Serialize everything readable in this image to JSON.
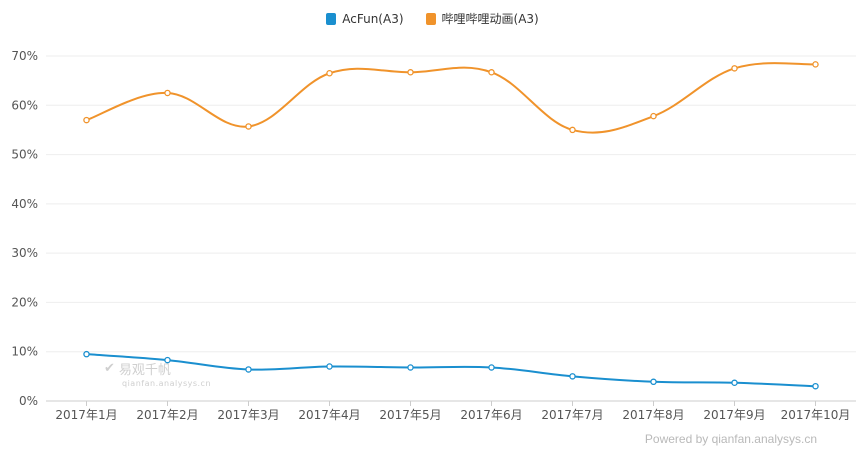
{
  "chart_data": {
    "type": "line",
    "categories": [
      "2017年1月",
      "2017年2月",
      "2017年3月",
      "2017年4月",
      "2017年5月",
      "2017年6月",
      "2017年7月",
      "2017年8月",
      "2017年9月",
      "2017年10月"
    ],
    "series": [
      {
        "name": "AcFun(A3)",
        "color": "#1a8fcf",
        "values": [
          9.5,
          8.3,
          6.4,
          7.0,
          6.8,
          6.8,
          5.0,
          3.9,
          3.7,
          3.0
        ]
      },
      {
        "name": "哔哩哔哩动画(A3)",
        "color": "#f0932b",
        "values": [
          57.0,
          62.5,
          55.7,
          66.5,
          66.7,
          66.7,
          55.0,
          57.8,
          67.5,
          68.3
        ]
      }
    ],
    "yticks": [
      "0%",
      "10%",
      "20%",
      "30%",
      "40%",
      "50%",
      "60%",
      "70%"
    ],
    "ylim": [
      0,
      70
    ],
    "grid": true,
    "legend_position": "top-center"
  },
  "watermark": {
    "brand": "易观千帆",
    "url": "qianfan.analysys.cn"
  },
  "footer": {
    "text": "Powered by qianfan.analysys.cn"
  }
}
